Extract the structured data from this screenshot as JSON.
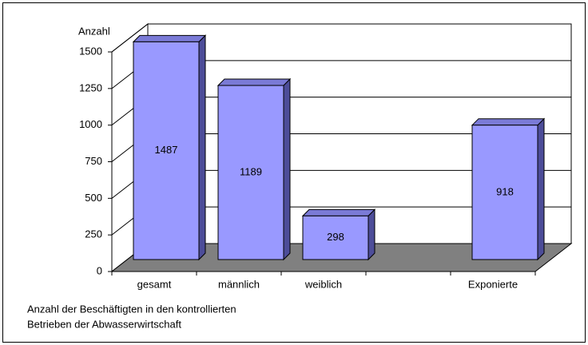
{
  "chart_data": {
    "type": "bar3d",
    "y_axis_label": "Anzahl",
    "categories": [
      "gesamt",
      "männlich",
      "weiblich",
      null,
      "Exponierte"
    ],
    "values": [
      1487,
      1189,
      298,
      null,
      918
    ],
    "color": "#9999ff",
    "ylim": [
      0,
      1500
    ],
    "yticks": [
      0,
      250,
      500,
      750,
      1000,
      1250,
      1500
    ],
    "grid": true,
    "caption": [
      "Anzahl der Beschäftigten in den kontrollierten",
      "Betrieben der Abwasserwirtschaft"
    ]
  }
}
